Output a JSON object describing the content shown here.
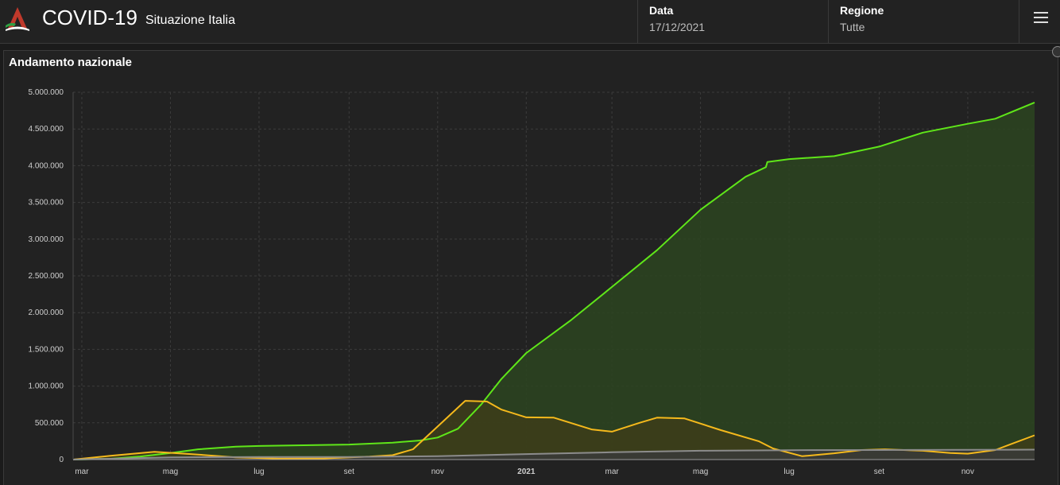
{
  "header": {
    "title": "COVID-19",
    "subtitle": "Situazione Italia",
    "date_label": "Data",
    "date_value": "17/12/2021",
    "region_label": "Regione",
    "region_value": "Tutte",
    "menu_icon": "hamburger-menu-icon",
    "logo_icon": "italy-logo-icon"
  },
  "panel": {
    "title": "Andamento nazionale",
    "close_icon": "close-icon"
  },
  "chart_data": {
    "type": "area",
    "title": "Andamento nazionale",
    "y_ticks": [
      "0",
      "500.000",
      "1.000.000",
      "1.500.000",
      "2.000.000",
      "2.500.000",
      "3.000.000",
      "3.500.000",
      "4.000.000",
      "4.500.000",
      "5.000.000"
    ],
    "ylim": [
      0,
      5000000
    ],
    "x_ticks": [
      {
        "label": "mar",
        "date": "2020-03-01"
      },
      {
        "label": "mag",
        "date": "2020-05-01"
      },
      {
        "label": "lug",
        "date": "2020-07-01"
      },
      {
        "label": "set",
        "date": "2020-09-01"
      },
      {
        "label": "nov",
        "date": "2020-11-01"
      },
      {
        "label": "2021",
        "date": "2021-01-01",
        "bold": true
      },
      {
        "label": "mar",
        "date": "2021-03-01"
      },
      {
        "label": "mag",
        "date": "2021-05-01"
      },
      {
        "label": "lug",
        "date": "2021-07-01"
      },
      {
        "label": "set",
        "date": "2021-09-01"
      },
      {
        "label": "nov",
        "date": "2021-11-01"
      }
    ],
    "xlim": [
      "2020-02-24",
      "2021-12-17"
    ],
    "grid": true,
    "series": [
      {
        "color": "#5fe619",
        "fill": "#2b4420",
        "points": [
          [
            "2020-02-24",
            0
          ],
          [
            "2020-03-20",
            10000
          ],
          [
            "2020-04-10",
            40000
          ],
          [
            "2020-05-01",
            90000
          ],
          [
            "2020-05-20",
            140000
          ],
          [
            "2020-06-15",
            175000
          ],
          [
            "2020-07-01",
            185000
          ],
          [
            "2020-08-01",
            195000
          ],
          [
            "2020-09-01",
            205000
          ],
          [
            "2020-10-01",
            230000
          ],
          [
            "2020-10-20",
            260000
          ],
          [
            "2020-11-01",
            300000
          ],
          [
            "2020-11-15",
            420000
          ],
          [
            "2020-12-01",
            750000
          ],
          [
            "2020-12-15",
            1100000
          ],
          [
            "2021-01-01",
            1450000
          ],
          [
            "2021-02-01",
            1900000
          ],
          [
            "2021-03-01",
            2350000
          ],
          [
            "2021-04-01",
            2850000
          ],
          [
            "2021-05-01",
            3400000
          ],
          [
            "2021-06-01",
            3850000
          ],
          [
            "2021-06-15",
            3980000
          ],
          [
            "2021-06-16",
            4050000
          ],
          [
            "2021-07-01",
            4090000
          ],
          [
            "2021-08-01",
            4130000
          ],
          [
            "2021-09-01",
            4260000
          ],
          [
            "2021-10-01",
            4450000
          ],
          [
            "2021-11-01",
            4570000
          ],
          [
            "2021-11-20",
            4640000
          ],
          [
            "2021-12-17",
            4860000
          ]
        ]
      },
      {
        "color": "#f5b91c",
        "fill": "#3d3d1a",
        "points": [
          [
            "2020-02-24",
            0
          ],
          [
            "2020-03-20",
            50000
          ],
          [
            "2020-04-20",
            105000
          ],
          [
            "2020-05-15",
            75000
          ],
          [
            "2020-06-15",
            30000
          ],
          [
            "2020-07-15",
            13000
          ],
          [
            "2020-08-15",
            16000
          ],
          [
            "2020-09-15",
            40000
          ],
          [
            "2020-10-01",
            60000
          ],
          [
            "2020-10-15",
            140000
          ],
          [
            "2020-11-01",
            450000
          ],
          [
            "2020-11-20",
            800000
          ],
          [
            "2020-12-05",
            790000
          ],
          [
            "2020-12-15",
            680000
          ],
          [
            "2021-01-01",
            575000
          ],
          [
            "2021-01-20",
            570000
          ],
          [
            "2021-02-15",
            410000
          ],
          [
            "2021-03-01",
            380000
          ],
          [
            "2021-03-20",
            500000
          ],
          [
            "2021-04-01",
            570000
          ],
          [
            "2021-04-20",
            560000
          ],
          [
            "2021-05-15",
            400000
          ],
          [
            "2021-06-10",
            250000
          ],
          [
            "2021-06-20",
            150000
          ],
          [
            "2021-07-10",
            45000
          ],
          [
            "2021-08-01",
            85000
          ],
          [
            "2021-08-20",
            130000
          ],
          [
            "2021-09-05",
            140000
          ],
          [
            "2021-10-01",
            120000
          ],
          [
            "2021-10-20",
            90000
          ],
          [
            "2021-11-01",
            80000
          ],
          [
            "2021-11-20",
            130000
          ],
          [
            "2021-12-17",
            330000
          ]
        ]
      },
      {
        "color": "#8c8c8c",
        "fill": "#3a3a3a",
        "points": [
          [
            "2020-02-24",
            0
          ],
          [
            "2020-05-01",
            30000
          ],
          [
            "2020-07-01",
            35000
          ],
          [
            "2020-09-01",
            36000
          ],
          [
            "2020-11-01",
            45000
          ],
          [
            "2021-01-01",
            75000
          ],
          [
            "2021-03-01",
            100000
          ],
          [
            "2021-05-01",
            120000
          ],
          [
            "2021-07-01",
            128000
          ],
          [
            "2021-09-01",
            130000
          ],
          [
            "2021-11-01",
            132000
          ],
          [
            "2021-12-17",
            135000
          ]
        ]
      }
    ]
  }
}
